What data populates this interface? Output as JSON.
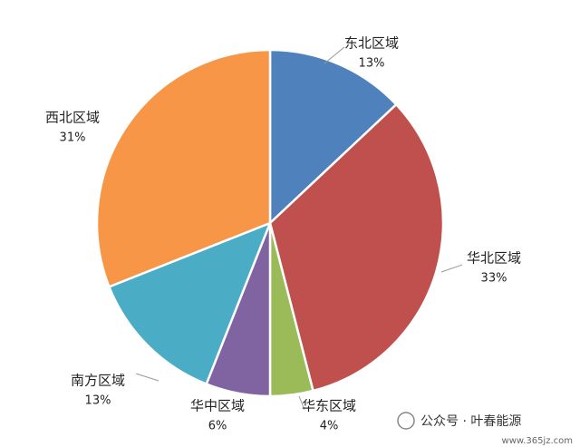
{
  "chart_data": {
    "type": "pie",
    "categories": [
      "东北区域",
      "华北区域",
      "华东区域",
      "华中区域",
      "南方区域",
      "西北区域"
    ],
    "values": [
      13,
      33,
      4,
      6,
      13,
      31
    ],
    "value_labels": [
      "13%",
      "33%",
      "4%",
      "6%",
      "13%",
      "31%"
    ],
    "colors": [
      "#4f81bd",
      "#c0504d",
      "#9bbb59",
      "#8064a2",
      "#4bacc6",
      "#f79646"
    ]
  },
  "watermark": {
    "account": "公众号 · 叶春能源",
    "site": "www.365jz.com"
  }
}
